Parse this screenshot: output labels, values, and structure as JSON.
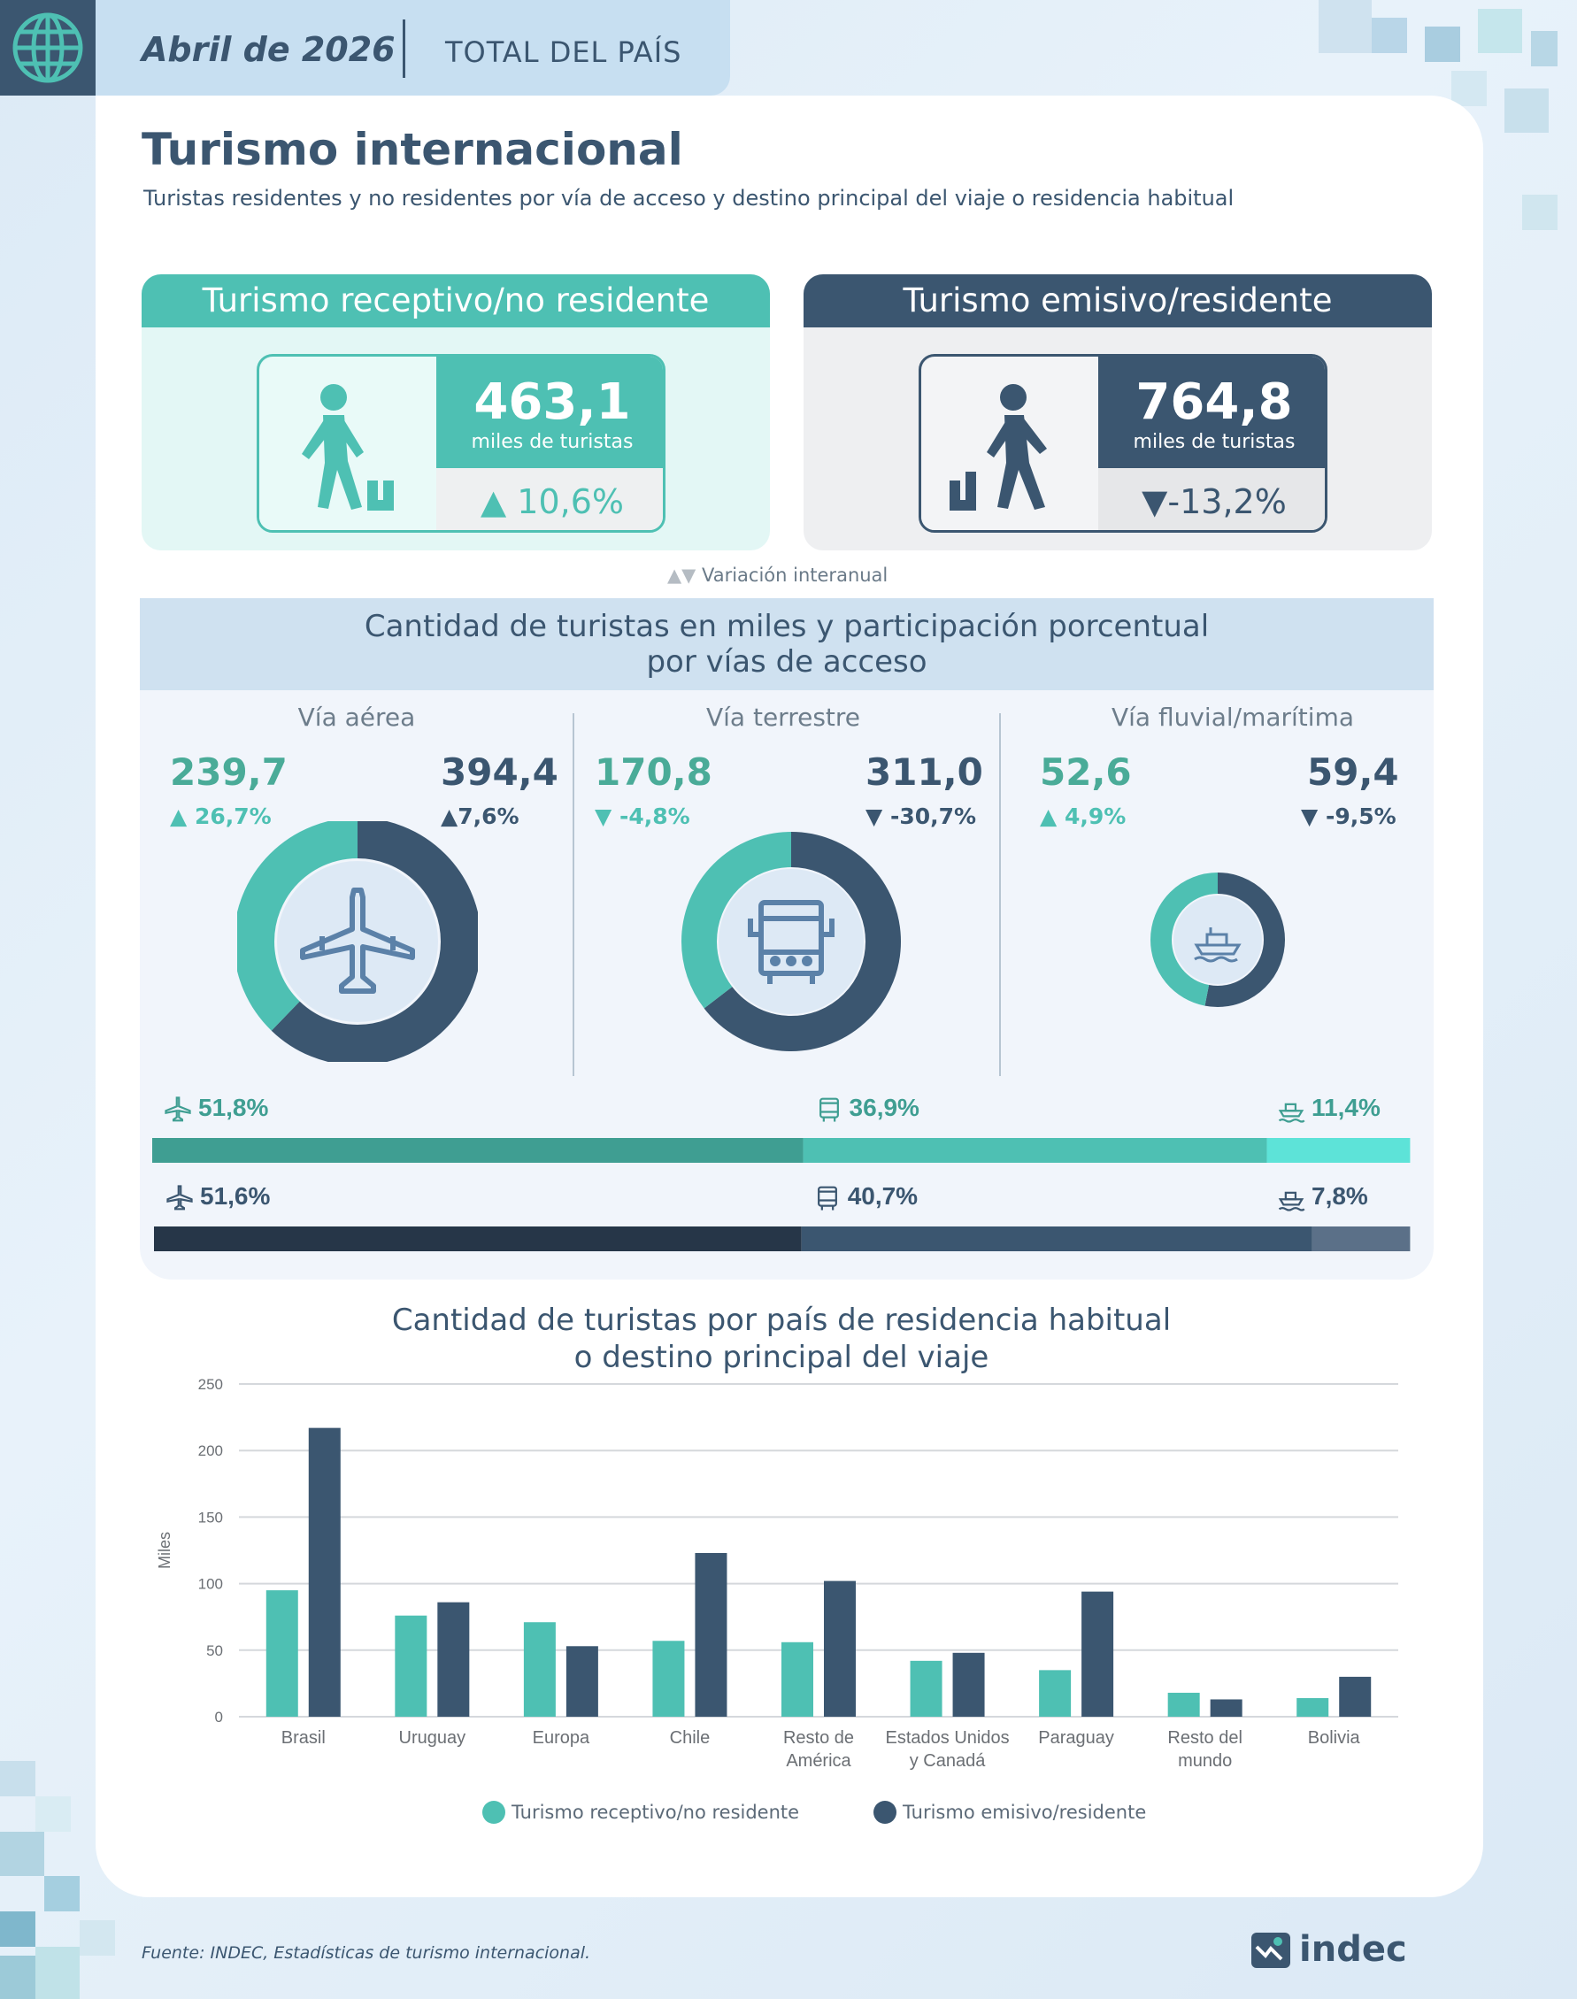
{
  "header": {
    "date": "Abril de 2026",
    "region": "TOTAL DEL PAÍS",
    "icon": "globe-icon"
  },
  "title": "Turismo internacional",
  "subtitle": "Turistas residentes y no residentes por vía de acceso y destino principal del viaje o residencia habitual",
  "receptivo": {
    "heading": "Turismo receptivo/no residente",
    "value": "463,1",
    "unit": "miles de turistas",
    "variation": "10,6%",
    "direction": "up",
    "icon": "arriving-traveler-icon",
    "color": "#4ec0b3"
  },
  "emisivo": {
    "heading": "Turismo emisivo/residente",
    "value": "764,8",
    "unit": "miles de turistas",
    "variation": "-13,2%",
    "direction": "down",
    "icon": "departing-traveler-icon",
    "color": "#3b5670"
  },
  "variation_note": "Variación interanual",
  "access": {
    "title_line1": "Cantidad de turistas en miles y participación porcentual",
    "title_line2": "por vías de acceso",
    "columns": [
      {
        "name": "Vía aérea",
        "icon": "airplane-icon",
        "receptivo": "239,7",
        "receptivo_var": "26,7%",
        "receptivo_dir": "up",
        "emisivo": "394,4",
        "emisivo_var": "7,6%",
        "emisivo_dir": "up",
        "receptivo_value": 239.7,
        "emisivo_value": 394.4
      },
      {
        "name": "Vía terrestre",
        "icon": "bus-icon",
        "receptivo": "170,8",
        "receptivo_var": "-4,8%",
        "receptivo_dir": "down",
        "emisivo": "311,0",
        "emisivo_var": "-30,7%",
        "emisivo_dir": "down",
        "receptivo_value": 170.8,
        "emisivo_value": 311.0
      },
      {
        "name": "Vía fluvial/marítima",
        "icon": "ship-icon",
        "receptivo": "52,6",
        "receptivo_var": "4,9%",
        "receptivo_dir": "up",
        "emisivo": "59,4",
        "emisivo_var": "-9,5%",
        "emisivo_dir": "down",
        "receptivo_value": 52.6,
        "emisivo_value": 59.4
      }
    ],
    "share_receptivo": [
      {
        "label": "51,8%",
        "value": 51.8,
        "icon": "airplane-icon",
        "color": "#3f9e92"
      },
      {
        "label": "36,9%",
        "value": 36.9,
        "icon": "bus-icon",
        "color": "#4ec0b3"
      },
      {
        "label": "11,4%",
        "value": 11.4,
        "icon": "ship-icon",
        "color": "#5de3d8"
      }
    ],
    "share_emisivo": [
      {
        "label": "51,6%",
        "value": 51.6,
        "icon": "airplane-icon",
        "color": "#263648"
      },
      {
        "label": "40,7%",
        "value": 40.7,
        "icon": "bus-icon",
        "color": "#3b5670"
      },
      {
        "label": "7,8%",
        "value": 7.8,
        "icon": "ship-icon",
        "color": "#5b7088"
      }
    ]
  },
  "chart_title_line1": "Cantidad de turistas por país de residencia habitual",
  "chart_title_line2": "o destino principal del viaje",
  "chart_data": {
    "type": "bar",
    "ylabel": "Miles",
    "ylim": [
      0,
      250
    ],
    "yticks": [
      "0",
      "50",
      "100",
      "150",
      "200",
      "250"
    ],
    "categories": [
      [
        "Brasil"
      ],
      [
        "Uruguay"
      ],
      [
        "Europa"
      ],
      [
        "Chile"
      ],
      [
        "Resto de",
        "América"
      ],
      [
        "Estados Unidos",
        "y Canadá"
      ],
      [
        "Paraguay"
      ],
      [
        "Resto del",
        "mundo"
      ],
      [
        "Bolivia"
      ]
    ],
    "series": [
      {
        "name": "Turismo receptivo/no residente",
        "color": "#4ec0b3",
        "values": [
          95,
          76,
          71,
          57,
          56,
          42,
          35,
          18,
          14
        ]
      },
      {
        "name": "Turismo emisivo/residente",
        "color": "#3b5670",
        "values": [
          217,
          86,
          53,
          123,
          102,
          48,
          94,
          13,
          30
        ]
      }
    ],
    "grid": true,
    "legend": "bottom"
  },
  "footer": "Fuente: INDEC, Estadísticas de turismo internacional.",
  "logo_text": "indec"
}
